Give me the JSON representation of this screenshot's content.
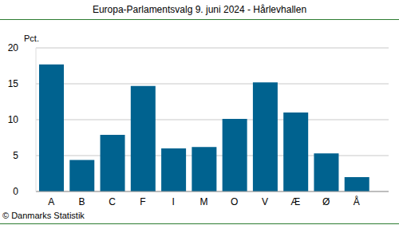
{
  "chart_data": {
    "type": "bar",
    "title": "Europa-Parlamentsvalg 9. juni 2024 - Hårlevhallen",
    "y_label": "Pct.",
    "source": "© Danmarks Statistik",
    "categories": [
      "A",
      "B",
      "C",
      "F",
      "I",
      "M",
      "O",
      "V",
      "Æ",
      "Ø",
      "Å"
    ],
    "values": [
      17.7,
      4.4,
      7.9,
      14.7,
      6.0,
      6.2,
      10.1,
      15.2,
      11.0,
      5.3,
      2.0
    ],
    "color": "#00628f",
    "ylim": [
      0,
      20
    ],
    "yticks": [
      0,
      5,
      10,
      15,
      20
    ],
    "grid": true
  }
}
